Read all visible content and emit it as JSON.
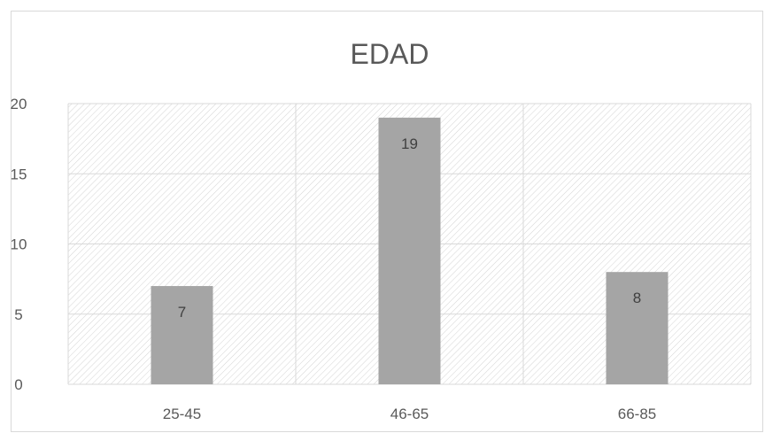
{
  "chart_data": {
    "type": "bar",
    "title": "EDAD",
    "categories": [
      "25-45",
      "46-65",
      "66-85"
    ],
    "values": [
      7,
      19,
      8
    ],
    "data_labels": [
      "7",
      "19",
      "8"
    ],
    "xlabel": "",
    "ylabel": "",
    "ylim": [
      0,
      20
    ],
    "yticks": [
      0,
      5,
      10,
      15,
      20
    ],
    "ytick_labels": [
      "0",
      "5",
      "10",
      "15",
      "20"
    ],
    "grid": true,
    "bar_color": "#a5a5a5",
    "grid_color": "#d9d9d9",
    "plot_fill": "diagonal-hatch"
  }
}
